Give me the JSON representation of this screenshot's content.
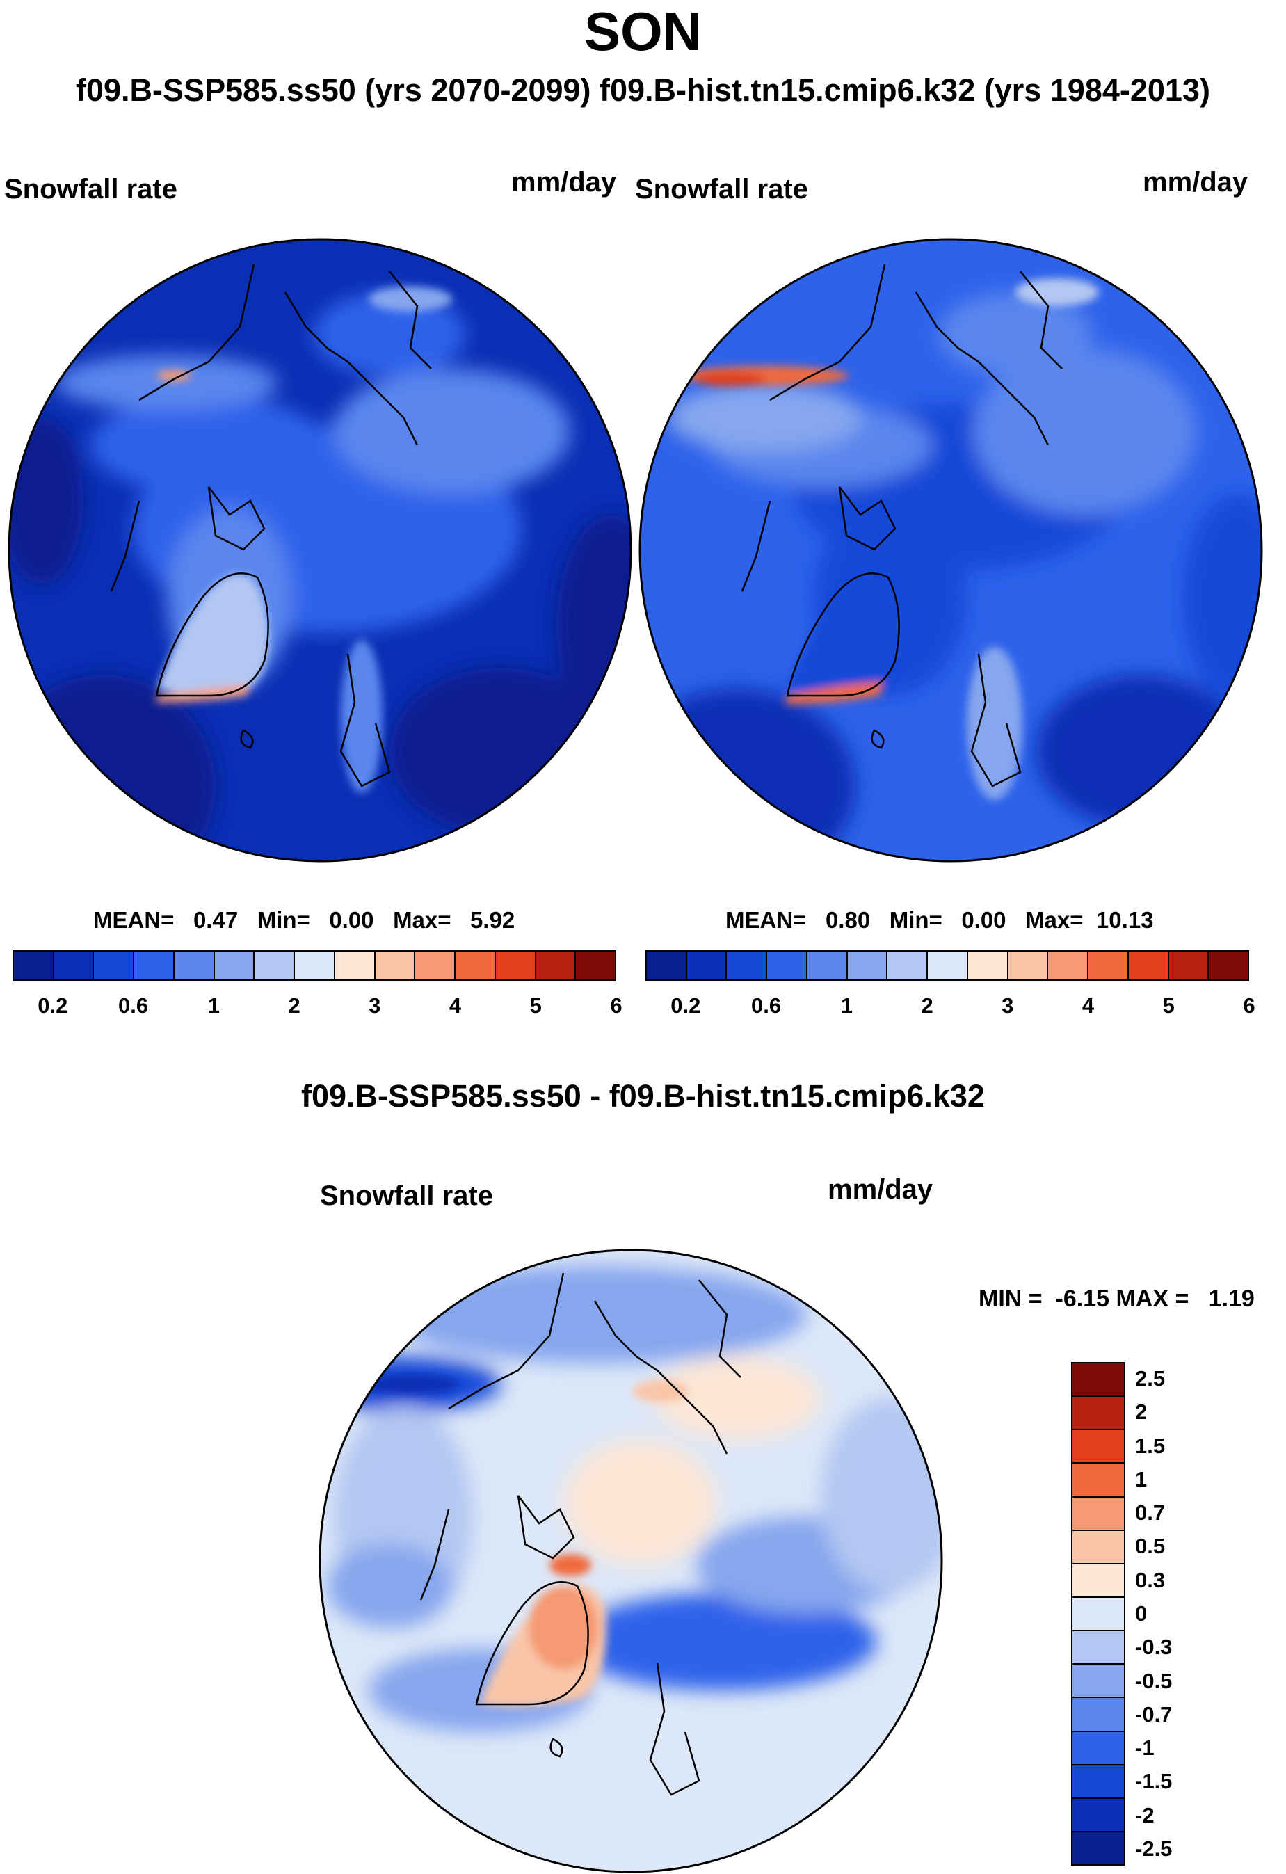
{
  "season": "SON",
  "subtitle": "f09.B-SSP585.ss50 (yrs 2070-2099)  f09.B-hist.tn15.cmip6.k32 (yrs 1984-2013)",
  "panels": [
    {
      "title": "Snowfall rate",
      "unit": "mm/day",
      "stats": {
        "mean_label": "MEAN=",
        "mean": "0.47",
        "min_label": "Min=",
        "min": "0.00",
        "max_label": "Max=",
        "max": "5.92"
      }
    },
    {
      "title": "Snowfall rate",
      "unit": "mm/day",
      "stats": {
        "mean_label": "MEAN=",
        "mean": "0.80",
        "min_label": "Min=",
        "min": "0.00",
        "max_label": "Max=",
        "max": "10.13"
      }
    }
  ],
  "diff": {
    "heading": "f09.B-SSP585.ss50 - f09.B-hist.tn15.cmip6.k32",
    "title": "Snowfall rate",
    "unit": "mm/day",
    "minmax": "MIN =  -6.15 MAX =   1.19"
  },
  "abs_colorbar": {
    "colors": [
      "#0a1f8f",
      "#0a2fb4",
      "#1549d8",
      "#2e62ea",
      "#5a86ee",
      "#86a6ee",
      "#b3c7f2",
      "#dce7f8",
      "#fce6d6",
      "#f9c5a8",
      "#f59a72",
      "#f06a3e",
      "#e0401c",
      "#b8200e",
      "#7f0a05"
    ],
    "tick_labels": [
      "0.2",
      "0.6",
      "1",
      "2",
      "3",
      "4",
      "5",
      "6"
    ]
  },
  "diff_colorbar": {
    "colors": [
      "#7f0a05",
      "#b8200e",
      "#e0401c",
      "#f06a3e",
      "#f59a72",
      "#f9c5a8",
      "#fce6d6",
      "#dce7f8",
      "#b3c7f2",
      "#86a6ee",
      "#5a86ee",
      "#2e62ea",
      "#1549d8",
      "#0a2fb4",
      "#0a1f8f"
    ],
    "tick_labels": [
      "2.5",
      "2",
      "1.5",
      "1",
      "0.7",
      "0.5",
      "0.3",
      "0",
      "-0.3",
      "-0.5",
      "-0.7",
      "-1",
      "-1.5",
      "-2",
      "-2.5"
    ]
  }
}
